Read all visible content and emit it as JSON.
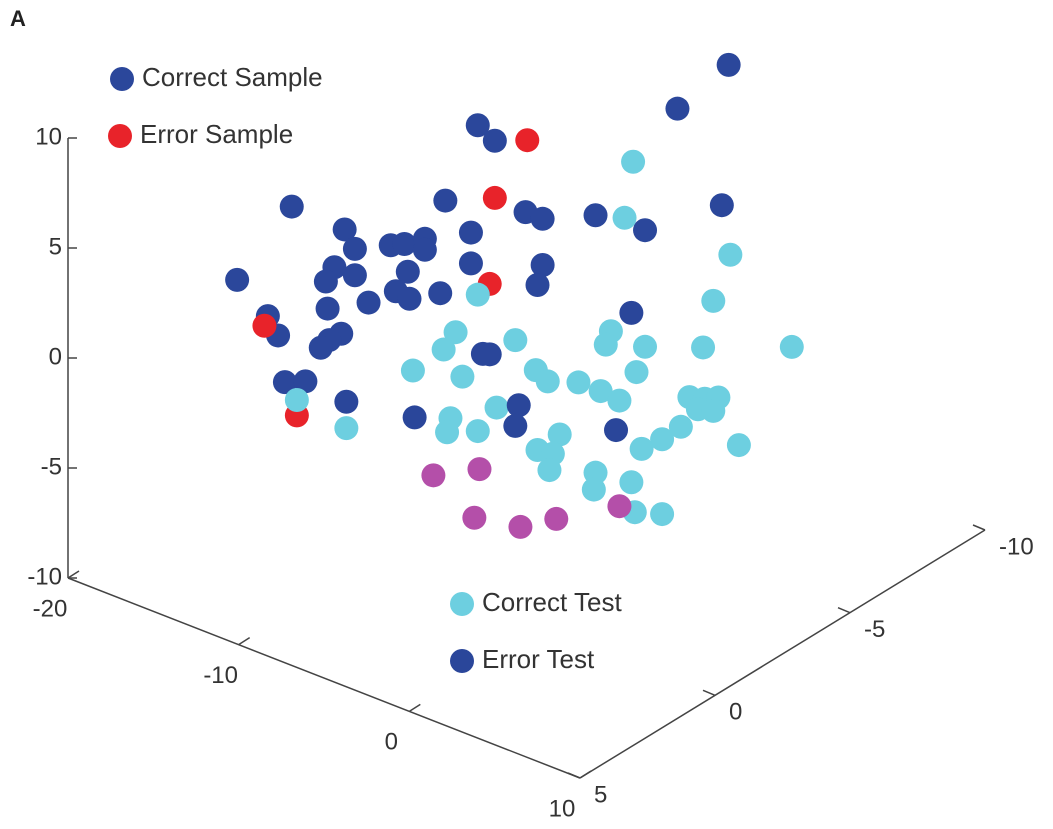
{
  "chart_data": {
    "type": "scatter3d",
    "panel_label": "A",
    "xlim": [
      -20,
      10
    ],
    "xticks": [
      -20,
      -10,
      0,
      10
    ],
    "ylim": [
      -10,
      5
    ],
    "yticks": [
      5,
      0,
      -5,
      -10
    ],
    "zlim": [
      -10,
      10
    ],
    "zticks": [
      -10,
      -5,
      0,
      5,
      10
    ],
    "series": [
      {
        "name": "Correct Sample",
        "color": "#2b479b",
        "x": [
          10.8,
          7.8,
          -3.9,
          -2.9,
          -5.8,
          -14.8,
          -1.1,
          -0.1,
          3.0,
          5.9,
          10.4,
          -11.7,
          -11.1,
          -4.3,
          -9.0,
          -8.2,
          -7.0,
          -7.0,
          -12.3,
          -12.8,
          -11.1,
          -8.0,
          -4.3,
          -0.1,
          -18.0,
          -0.4,
          -8.7,
          -7.9,
          -6.1,
          -10.3,
          -12.7,
          -16.2,
          -15.6,
          -11.9,
          -12.6,
          -13.1,
          -15.2,
          -14.0
        ],
        "y": [
          0,
          0,
          0,
          0,
          0,
          0,
          0,
          0,
          0,
          0,
          0,
          0,
          0,
          0,
          0,
          0,
          0,
          0,
          0,
          0,
          0,
          0,
          0,
          0,
          0,
          0,
          0,
          0,
          0,
          0,
          0,
          0,
          0,
          0,
          0,
          0,
          0,
          0
        ],
        "z": [
          18.9,
          16.0,
          11.7,
          11.3,
          7.7,
          4.7,
          8.6,
          8.6,
          9.7,
          9.9,
          12.4,
          4.6,
          3.9,
          6.7,
          4.7,
          5.0,
          5.6,
          5.1,
          2.7,
          1.9,
          2.7,
          3.8,
          5.3,
          6.5,
          0.4,
          5.5,
          2.7,
          2.6,
          3.4,
          1.7,
          0.7,
          -0.7,
          -1.4,
          -0.2,
          -0.7,
          -1.2,
          -3.4,
          -3.0
        ]
      },
      {
        "name": "Error Sample",
        "color": "#e8232a",
        "x": [
          -1.0,
          -2.9,
          -3.2,
          -16.4,
          -14.5
        ],
        "y": [
          0,
          0,
          0,
          0,
          0
        ],
        "z": [
          11.9,
          8.7,
          4.7,
          -1.2,
          -4.7
        ]
      },
      {
        "name": "Correct Test",
        "color": "#6dcfe0",
        "x": [
          5.2,
          4.7,
          10.9,
          9.9,
          -3.9,
          3.9,
          3.6,
          5.9,
          9.3,
          14.5,
          -5.2,
          -5.9,
          -1.7,
          -7.7,
          -4.8,
          -0.5,
          0.2,
          2.0,
          3.3,
          4.4,
          5.4,
          8.5,
          9.4,
          10.2,
          9.0,
          9.9,
          8.0,
          6.9,
          5.7,
          11.4,
          -2.8,
          -5.5,
          -5.7,
          -3.9,
          0.9,
          -0.4,
          0.5,
          0.3,
          3.0,
          2.9,
          5.1,
          5.3,
          6.9,
          -11.6,
          -14.5
        ],
        "y": [
          0,
          0,
          0,
          0,
          0,
          0,
          0,
          0,
          0,
          0,
          0,
          0,
          0,
          0,
          0,
          0,
          0,
          0,
          0,
          0,
          0,
          0,
          0,
          0,
          0,
          0,
          0,
          0,
          0,
          0,
          0,
          0,
          0,
          0,
          0,
          0,
          0,
          0,
          0,
          0,
          0,
          0,
          0,
          0,
          0
        ],
        "z": [
          12.8,
          10.1,
          10.3,
          7.9,
          4.0,
          4.7,
          4.0,
          4.6,
          5.6,
          7.2,
          1.9,
          0.9,
          2.6,
          -0.6,
          0.0,
          1.6,
          1.3,
          1.8,
          1.8,
          1.7,
          3.3,
          3.1,
          3.3,
          3.6,
          2.7,
          2.9,
          1.6,
          0.7,
          -0.1,
          1.8,
          -0.8,
          -2.1,
          -2.8,
          -2.2,
          -0.9,
          -2.0,
          -1.9,
          -2.7,
          -2.0,
          -2.8,
          -1.8,
          -3.1,
          -2.7,
          -4.4,
          -4.0
        ]
      },
      {
        "name": "Error Test",
        "color": "#2a469a",
        "x": [
          -3.6,
          -3.2,
          -1.5,
          -1.7,
          4.2,
          5.1,
          -7.6,
          -11.6
        ],
        "y": [
          0,
          0,
          0,
          0,
          0,
          0,
          0,
          0
        ],
        "z": [
          1.4,
          1.5,
          -0.3,
          -1.3,
          0.3,
          5.9,
          -2.7,
          -3.2
        ]
      },
      {
        "color": "#b44fa9",
        "x": [
          -6.5,
          -3.8,
          -4.1,
          -1.4,
          0.7,
          4.4
        ],
        "y": [
          0,
          0,
          0,
          0,
          0,
          0
        ],
        "z": [
          -5.0,
          -3.9,
          -6.2,
          -5.8,
          -4.8,
          -3.1
        ]
      }
    ]
  }
}
